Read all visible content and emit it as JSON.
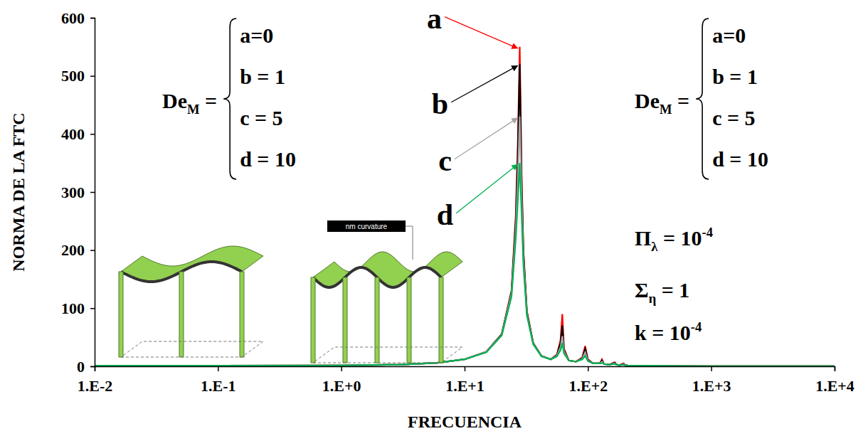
{
  "chart_data": {
    "type": "line",
    "x_label": "FRECUENCIA",
    "y_label": "NORMA DE LA FTC",
    "log": "x",
    "grid": false,
    "xlim": [
      0.01,
      10000
    ],
    "xticks": [
      {
        "value": 0.01,
        "label": "1.E-2"
      },
      {
        "value": 0.1,
        "label": "1.E-1"
      },
      {
        "value": 1,
        "label": "1.E+0"
      },
      {
        "value": 10,
        "label": "1.E+1"
      },
      {
        "value": 100,
        "label": "1.E+2"
      },
      {
        "value": 1000,
        "label": "1.E+3"
      },
      {
        "value": 10000,
        "label": "1.E+4"
      }
    ],
    "ylim": [
      0,
      600
    ],
    "yticks": [
      0,
      100,
      200,
      300,
      400,
      500,
      600
    ],
    "x": [
      0.01,
      0.1,
      1,
      3,
      6,
      10,
      15,
      20,
      24,
      26,
      27,
      28,
      29,
      30,
      32,
      36,
      42,
      50,
      56,
      60,
      62,
      64,
      70,
      80,
      90,
      95,
      100,
      110,
      125,
      130,
      135,
      150,
      165,
      170,
      180,
      195,
      200,
      210,
      250,
      300,
      500,
      1000,
      10000
    ],
    "series": [
      {
        "name": "a",
        "color": "#ff0000",
        "values": [
          1,
          1,
          1.5,
          3,
          6,
          12,
          25,
          55,
          130,
          260,
          380,
          550,
          330,
          200,
          95,
          40,
          18,
          12,
          20,
          45,
          90,
          30,
          10,
          8,
          15,
          35,
          12,
          5,
          5,
          12,
          4,
          3,
          7,
          3,
          2,
          5,
          2,
          1.5,
          1.2,
          1,
          0.5,
          0.2,
          0.05
        ]
      },
      {
        "name": "b",
        "color": "#000000",
        "values": [
          1,
          1,
          1.5,
          3,
          6,
          12,
          25,
          55,
          128,
          250,
          360,
          520,
          315,
          195,
          93,
          40,
          18,
          12,
          19,
          40,
          70,
          28,
          10,
          8,
          14,
          30,
          11,
          5,
          5,
          10,
          4,
          3,
          6,
          3,
          2,
          4,
          2,
          1.5,
          1.2,
          1,
          0.5,
          0.2,
          0.05
        ]
      },
      {
        "name": "c",
        "color": "#a6a6a6",
        "values": [
          1,
          1,
          1.5,
          3,
          6,
          12,
          25,
          54,
          125,
          235,
          320,
          430,
          290,
          185,
          90,
          39,
          18,
          12,
          18,
          33,
          52,
          25,
          10,
          8,
          13,
          24,
          10,
          5,
          5,
          8,
          4,
          3,
          5,
          3,
          2,
          3.5,
          2,
          1.5,
          1.2,
          1,
          0.5,
          0.2,
          0.05
        ]
      },
      {
        "name": "d",
        "color": "#00b050",
        "values": [
          1,
          1,
          1.5,
          3,
          6,
          12,
          24,
          53,
          120,
          220,
          285,
          350,
          265,
          175,
          88,
          38,
          17,
          12,
          17,
          28,
          40,
          22,
          10,
          8,
          12,
          18,
          9,
          5,
          5,
          6,
          4,
          3,
          4,
          3,
          2,
          3,
          2,
          1.5,
          1.2,
          1,
          0.5,
          0.2,
          0.05
        ]
      }
    ],
    "annotations": [
      {
        "parts": [
          {
            "t": "De"
          },
          {
            "t": "M",
            "sub": true
          },
          {
            "t": " ="
          }
        ],
        "cases": [
          "a=0",
          "b = 1",
          "c = 5",
          "d = 10"
        ]
      },
      {
        "parts": [
          {
            "t": "De"
          },
          {
            "t": "M",
            "sub": true
          },
          {
            "t": " ="
          }
        ],
        "cases": [
          "a=0",
          "b = 1",
          "c = 5",
          "d = 10"
        ]
      },
      {
        "parts": [
          {
            "t": "Π"
          },
          {
            "t": "λ",
            "sub": true
          },
          {
            "t": " = 10"
          },
          {
            "t": "-4",
            "sup": true
          }
        ]
      },
      {
        "parts": [
          {
            "t": "Σ"
          },
          {
            "t": "η",
            "sub": true
          },
          {
            "t": " = 1"
          }
        ]
      },
      {
        "parts": [
          {
            "t": "k = 10"
          },
          {
            "t": "-4",
            "sup": true
          }
        ]
      }
    ],
    "inset_label": "nm curvature"
  }
}
